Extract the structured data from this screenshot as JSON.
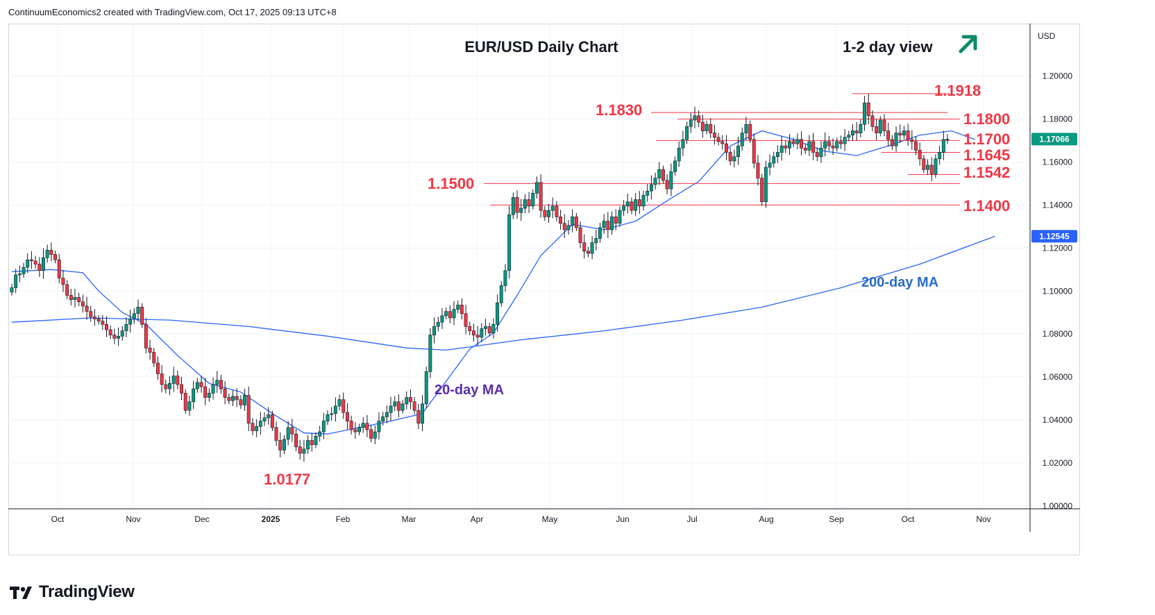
{
  "attribution": "ContinuumEconomics2 created with TradingView.com, Oct 17, 2025 09:13 UTC+8",
  "logo": {
    "text": "TradingView",
    "icon": "tradingview-logo-icon"
  },
  "chart_data": {
    "type": "candlestick",
    "title": "EUR/USD Daily Chart",
    "currency_label": "USD",
    "view": {
      "label": "1-2 day view",
      "icon": "arrow-up-right-icon",
      "color": "#0b8a6a"
    },
    "ylim": [
      1.0,
      1.22
    ],
    "y_ticks": [
      "1.00000",
      "1.02000",
      "1.04000",
      "1.06000",
      "1.08000",
      "1.10000",
      "1.12000",
      "1.14000",
      "1.16000",
      "1.18000",
      "1.20000"
    ],
    "x_ticks": [
      "Oct",
      "Nov",
      "Dec",
      "2025",
      "Feb",
      "Mar",
      "Apr",
      "May",
      "Jun",
      "Jul",
      "Aug",
      "Sep",
      "Oct",
      "Nov"
    ],
    "grid": true,
    "colors": {
      "up": "#089981",
      "down": "#f23645",
      "ma20": "#2962ff",
      "ma200": "#2962ff",
      "levels": "#f23645",
      "annotations": "#f23645"
    },
    "price_tags": [
      {
        "value": "1.17066",
        "price": 1.17066,
        "color": "#089981"
      },
      {
        "value": "1.12545",
        "price": 1.12545,
        "color": "#2962ff"
      }
    ],
    "levels": [
      {
        "label": "1.1918",
        "price": 1.1918
      },
      {
        "label": "1.1830",
        "price": 1.183
      },
      {
        "label": "1.1800",
        "price": 1.18
      },
      {
        "label": "1.1700",
        "price": 1.17
      },
      {
        "label": "1.1645",
        "price": 1.1645
      },
      {
        "label": "1.1542",
        "price": 1.1542
      },
      {
        "label": "1.1500",
        "price": 1.15
      },
      {
        "label": "1.1400",
        "price": 1.14
      },
      {
        "label": "1.0177",
        "price": 1.0177
      }
    ],
    "ma_labels": {
      "ma20": "20-day MA",
      "ma200": "200-day MA"
    },
    "closes": [
      1.1015,
      1.1075,
      1.108,
      1.111,
      1.1145,
      1.114,
      1.1125,
      1.1095,
      1.1155,
      1.119,
      1.117,
      1.1145,
      1.106,
      1.103,
      1.098,
      1.096,
      1.097,
      1.095,
      1.093,
      1.0905,
      1.088,
      1.087,
      1.086,
      1.0845,
      1.082,
      1.0795,
      1.078,
      1.079,
      1.0815,
      1.0845,
      1.087,
      1.0895,
      1.0925,
      1.0845,
      1.0735,
      1.0715,
      1.0665,
      1.0615,
      1.0565,
      1.0545,
      1.057,
      1.0605,
      1.0565,
      1.0525,
      1.0445,
      1.0485,
      1.0545,
      1.0575,
      1.0555,
      1.0505,
      1.0525,
      1.0565,
      1.0585,
      1.0545,
      1.0505,
      1.049,
      1.051,
      1.0495,
      1.047,
      1.0515,
      1.0385,
      1.035,
      1.037,
      1.0395,
      1.041,
      1.0425,
      1.0365,
      1.0305,
      1.026,
      1.031,
      1.0365,
      1.0335,
      1.0275,
      1.0245,
      1.0265,
      1.0305,
      1.0285,
      1.0325,
      1.0345,
      1.0395,
      1.0425,
      1.043,
      1.0465,
      1.0495,
      1.0435,
      1.0395,
      1.0355,
      1.0345,
      1.0365,
      1.0385,
      1.0355,
      1.0315,
      1.0345,
      1.0395,
      1.0415,
      1.0435,
      1.0465,
      1.0485,
      1.0445,
      1.0475,
      1.0505,
      1.0485,
      1.0445,
      1.0385,
      1.0475,
      1.0625,
      1.0795,
      1.0835,
      1.0855,
      1.0885,
      1.0905,
      1.0875,
      1.0915,
      1.0935,
      1.0895,
      1.0835,
      1.0815,
      1.0795,
      1.0785,
      1.0825,
      1.0835,
      1.0805,
      1.0845,
      1.0945,
      1.1025,
      1.1095,
      1.1355,
      1.1435,
      1.1365,
      1.1385,
      1.1425,
      1.1395,
      1.1455,
      1.1505,
      1.1375,
      1.1345,
      1.1375,
      1.1395,
      1.1345,
      1.1315,
      1.1285,
      1.1305,
      1.1345,
      1.1295,
      1.1225,
      1.1185,
      1.1175,
      1.1225,
      1.1245,
      1.1295,
      1.1325,
      1.1285,
      1.1345,
      1.1315,
      1.1375,
      1.1395,
      1.1415,
      1.1375,
      1.1425,
      1.1395,
      1.1445,
      1.1465,
      1.1495,
      1.1525,
      1.1565,
      1.1515,
      1.1475,
      1.1555,
      1.1605,
      1.1665,
      1.1705,
      1.1765,
      1.1795,
      1.1815,
      1.1785,
      1.1745,
      1.1775,
      1.1735,
      1.1715,
      1.1695,
      1.1685,
      1.1645,
      1.1605,
      1.1625,
      1.1675,
      1.1735,
      1.1775,
      1.1705,
      1.1595,
      1.1525,
      1.1415,
      1.1575,
      1.1595,
      1.1625,
      1.1645,
      1.1675,
      1.1665,
      1.1695,
      1.1685,
      1.1705,
      1.1665,
      1.1655,
      1.1695,
      1.1645,
      1.1625,
      1.1665,
      1.1695,
      1.1675,
      1.1665,
      1.1695,
      1.1685,
      1.1715,
      1.1725,
      1.1745,
      1.1735,
      1.1775,
      1.1875,
      1.1815,
      1.1765,
      1.1735,
      1.1795,
      1.1745,
      1.1705,
      1.1675,
      1.1735,
      1.1725,
      1.1745,
      1.1705,
      1.1695,
      1.1655,
      1.1615,
      1.1565,
      1.1585,
      1.1545,
      1.1615,
      1.1645,
      1.1705,
      1.17066
    ],
    "ma20": [
      [
        0,
        1.109
      ],
      [
        10,
        1.11
      ],
      [
        18,
        1.1085
      ],
      [
        22,
        1.1
      ],
      [
        28,
        1.09
      ],
      [
        34,
        1.0845
      ],
      [
        42,
        1.07
      ],
      [
        50,
        1.057
      ],
      [
        58,
        1.053
      ],
      [
        66,
        1.043
      ],
      [
        74,
        1.034
      ],
      [
        80,
        1.0335
      ],
      [
        88,
        1.0365
      ],
      [
        96,
        1.0395
      ],
      [
        104,
        1.043
      ],
      [
        110,
        1.058
      ],
      [
        116,
        1.073
      ],
      [
        122,
        1.0805
      ],
      [
        128,
        1.098
      ],
      [
        134,
        1.1165
      ],
      [
        142,
        1.131
      ],
      [
        150,
        1.1285
      ],
      [
        158,
        1.1325
      ],
      [
        166,
        1.142
      ],
      [
        174,
        1.151
      ],
      [
        182,
        1.1675
      ],
      [
        190,
        1.1745
      ],
      [
        198,
        1.1705
      ],
      [
        206,
        1.165
      ],
      [
        214,
        1.163
      ],
      [
        222,
        1.1675
      ],
      [
        230,
        1.1725
      ],
      [
        238,
        1.1745
      ],
      [
        244,
        1.1705
      ]
    ],
    "ma200": [
      [
        0,
        1.0855
      ],
      [
        20,
        1.0875
      ],
      [
        40,
        1.0865
      ],
      [
        60,
        1.0835
      ],
      [
        80,
        1.079
      ],
      [
        100,
        1.0735
      ],
      [
        110,
        1.0725
      ],
      [
        130,
        1.0775
      ],
      [
        150,
        1.0815
      ],
      [
        170,
        1.0865
      ],
      [
        190,
        1.0925
      ],
      [
        210,
        1.1015
      ],
      [
        230,
        1.1125
      ],
      [
        249,
        1.12545
      ]
    ]
  }
}
